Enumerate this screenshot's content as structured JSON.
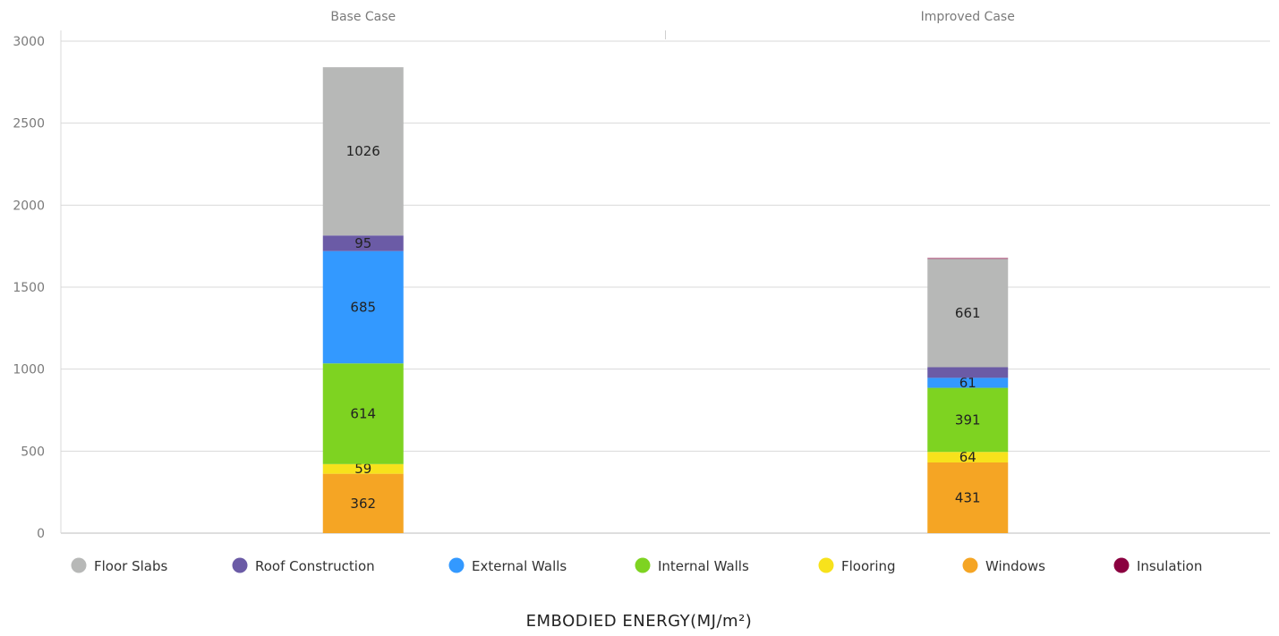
{
  "chart_data": {
    "type": "bar",
    "stacked": true,
    "categories": [
      "Base Case",
      "Improved Case"
    ],
    "series": [
      {
        "name": "Windows",
        "color": "#f5a524",
        "values": [
          362,
          431
        ],
        "labels": [
          "362",
          "431"
        ]
      },
      {
        "name": "Flooring",
        "color": "#f7e21c",
        "values": [
          59,
          64
        ],
        "labels": [
          "59",
          "64"
        ]
      },
      {
        "name": "Internal Walls",
        "color": "#7ed321",
        "values": [
          614,
          391
        ],
        "labels": [
          "614",
          "391"
        ]
      },
      {
        "name": "External Walls",
        "color": "#3399ff",
        "values": [
          685,
          61
        ],
        "labels": [
          "685",
          "61"
        ]
      },
      {
        "name": "Roof Construction",
        "color": "#6b5ba6",
        "values": [
          95,
          65
        ],
        "labels": [
          "95",
          ""
        ]
      },
      {
        "name": "Floor Slabs",
        "color": "#b7b8b7",
        "values": [
          1026,
          661
        ],
        "labels": [
          "1026",
          "661"
        ]
      },
      {
        "name": "Insulation",
        "color": "#8b0040",
        "values": [
          0,
          4
        ],
        "labels": [
          "",
          ""
        ]
      }
    ],
    "legend": [
      "Floor Slabs",
      "Roof Construction",
      "External Walls",
      "Internal Walls",
      "Flooring",
      "Windows",
      "Insulation"
    ],
    "legend_position": "bottom",
    "y_ticks": [
      "0",
      "500",
      "1000",
      "1500",
      "2000",
      "2500",
      "3000"
    ],
    "ylim": [
      0,
      3000
    ],
    "xlabel": "EMBODIED ENERGY(MJ/m²)",
    "grid": true
  }
}
